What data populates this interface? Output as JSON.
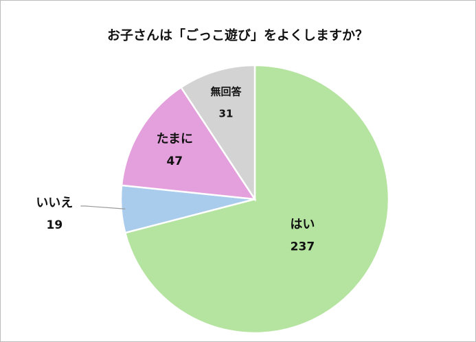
{
  "chart_data": {
    "type": "pie",
    "title": "お子さんは「ごっこ遊び」をよくしますか？",
    "categories": [
      "はい",
      "いいえ",
      "たまに",
      "無回答"
    ],
    "values": [
      237,
      19,
      47,
      31
    ],
    "colors": [
      "#b5e3a0",
      "#a9cbec",
      "#e4a0dc",
      "#d3d3d3"
    ]
  }
}
